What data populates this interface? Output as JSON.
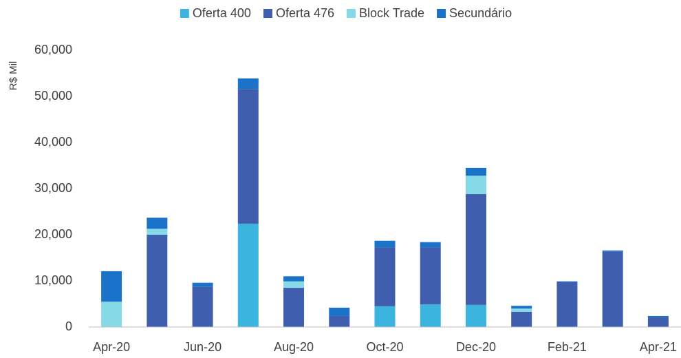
{
  "chart_data": {
    "type": "stacked_bar",
    "y_axis_label": "R$ Mil",
    "categories": [
      "Apr-20",
      null,
      "Jun-20",
      null,
      "Aug-20",
      null,
      "Oct-20",
      null,
      "Dec-20",
      null,
      "Feb-21",
      null,
      "Apr-21"
    ],
    "series": [
      {
        "name": "Oferta 400",
        "color": "#3cb4e0",
        "values": [
          0,
          0,
          0,
          22400,
          0,
          0,
          4500,
          4900,
          4800,
          0,
          0,
          0,
          0
        ]
      },
      {
        "name": "Oferta 476",
        "color": "#3f5fae",
        "values": [
          0,
          20000,
          8700,
          29200,
          8500,
          2400,
          12800,
          12400,
          24000,
          3300,
          9700,
          16400,
          2100
        ]
      },
      {
        "name": "Block Trade",
        "color": "#86d9e6",
        "values": [
          5500,
          1300,
          0,
          0,
          1400,
          0,
          0,
          0,
          4000,
          700,
          0,
          0,
          0
        ]
      },
      {
        "name": "Secundário",
        "color": "#1a73c9",
        "values": [
          6600,
          2400,
          900,
          2300,
          1100,
          1800,
          1400,
          1100,
          1700,
          600,
          200,
          200,
          300
        ]
      }
    ],
    "ylim": [
      0,
      60000
    ],
    "yticks": [
      0,
      {
        "value": 10000,
        "label": "10,000"
      },
      {
        "value": 20000,
        "label": "20,000"
      },
      {
        "value": 30000,
        "label": "30,000"
      },
      {
        "value": 40000,
        "label": "40,000"
      },
      {
        "value": 50000,
        "label": "50,000"
      },
      {
        "value": 60000,
        "label": "60,000"
      }
    ],
    "legend": "top"
  }
}
